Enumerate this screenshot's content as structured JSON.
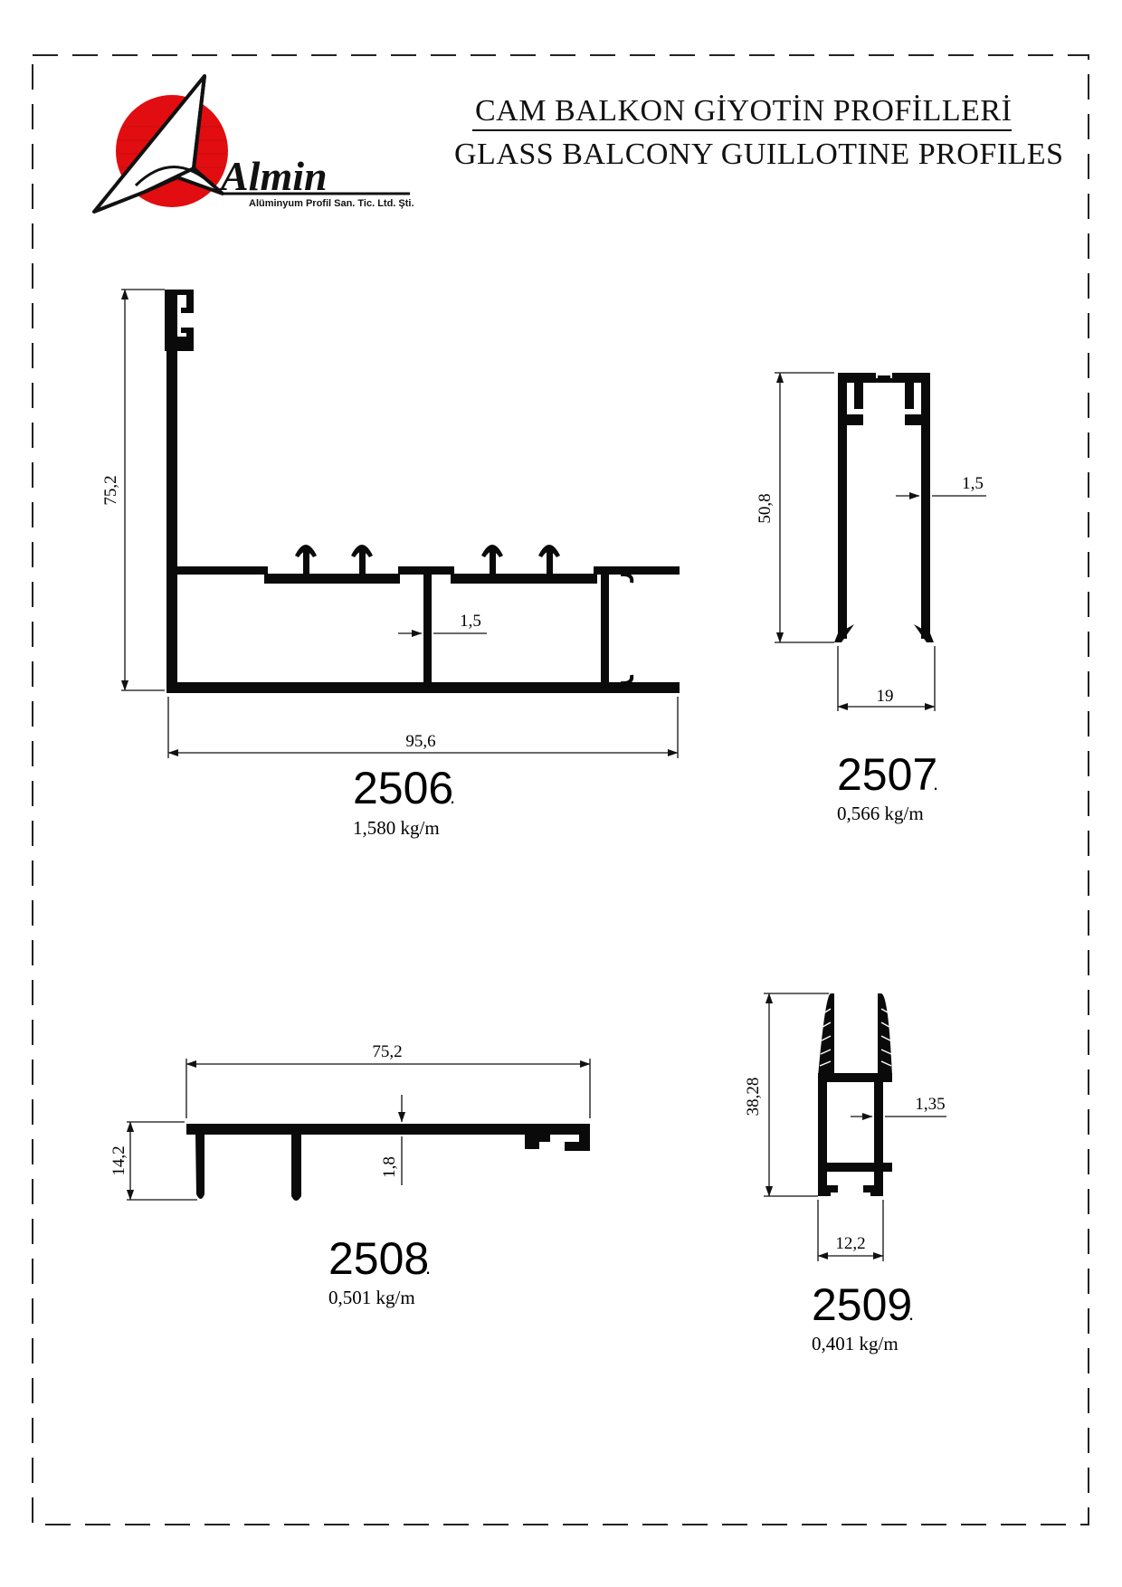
{
  "header": {
    "title_tr": "CAM BALKON GİYOTİN PROFİLLERİ",
    "title_en": "GLASS BALCONY GUILLOTINE PROFILES"
  },
  "logo": {
    "name": "Almin",
    "subtitle": "Alüminyum Profil San. Tic. Ltd. Şti.",
    "colors": {
      "red": "#e10d10",
      "dark": "#111111"
    }
  },
  "profiles": [
    {
      "code": "2506",
      "weight": "1,580 kg/m",
      "dims": {
        "height": "75,2",
        "width": "95,6",
        "wall": "1,5"
      }
    },
    {
      "code": "2507",
      "weight": "0,566 kg/m",
      "dims": {
        "height": "50,8",
        "width": "19",
        "wall": "1,5"
      }
    },
    {
      "code": "2508",
      "weight": "0,501 kg/m",
      "dims": {
        "width": "75,2",
        "height": "14,2",
        "wall": "1,8"
      }
    },
    {
      "code": "2509",
      "weight": "0,401 kg/m",
      "dims": {
        "height": "38,28",
        "width": "12,2",
        "wall": "1,35"
      }
    }
  ],
  "colors": {
    "profile": "#0a0a0a",
    "line": "#111111",
    "border": "#222222"
  }
}
